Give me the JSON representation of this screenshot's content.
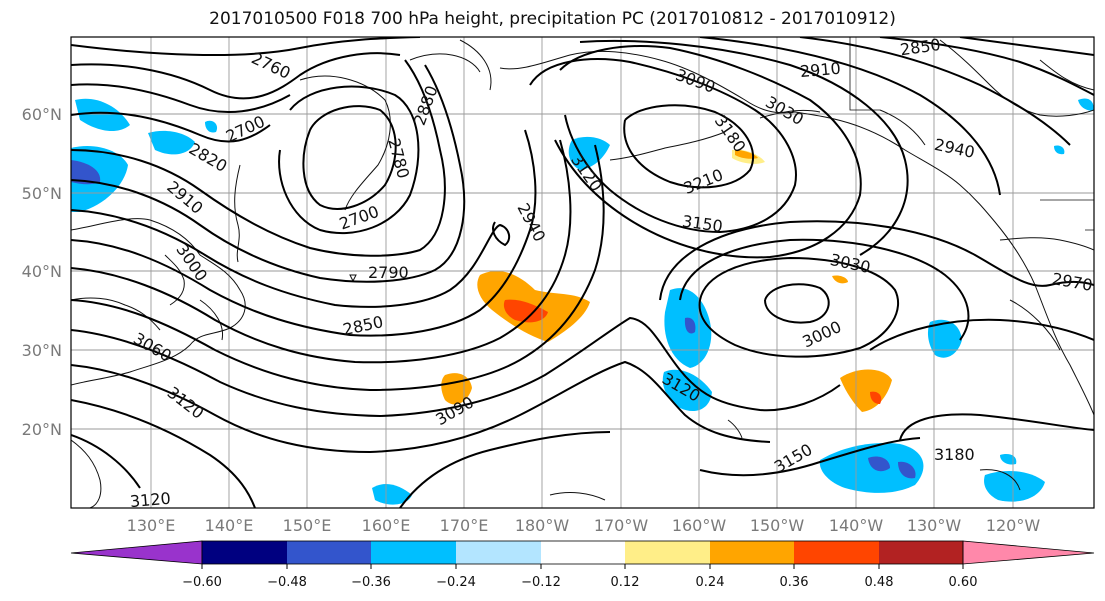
{
  "title": "2017010500 F018 700 hPa height, precipitation PC (2017010812 - 2017010912)",
  "lat_labels": [
    "60°N",
    "50°N",
    "40°N",
    "30°N",
    "20°N"
  ],
  "lon_labels": [
    "130°E",
    "140°E",
    "150°E",
    "160°E",
    "170°E",
    "180°W",
    "170°W",
    "160°W",
    "150°W",
    "140°W",
    "130°W",
    "120°W"
  ],
  "contour_labels": [
    "2760",
    "2700",
    "2820",
    "2910",
    "3000",
    "3060",
    "3120",
    "2850",
    "2790",
    "2700",
    "2780",
    "2880",
    "2940",
    "3090",
    "3120",
    "3090",
    "3180",
    "3210",
    "3150",
    "3030",
    "3000",
    "3120",
    "3150",
    "3180",
    "2850",
    "2910",
    "2940",
    "2970",
    "3030",
    "3120"
  ],
  "colorbar": {
    "colors": [
      "#9933cc",
      "#000080",
      "#3355cc",
      "#00bfff",
      "#b3e5ff",
      "#ffffff",
      "#ffee88",
      "#ffa500",
      "#ff4500",
      "#b22222",
      "#ff88aa"
    ],
    "tick_labels": [
      "−0.60",
      "−0.48",
      "−0.36",
      "−0.24",
      "−0.12",
      "0.12",
      "0.24",
      "0.36",
      "0.48",
      "0.60"
    ]
  }
}
